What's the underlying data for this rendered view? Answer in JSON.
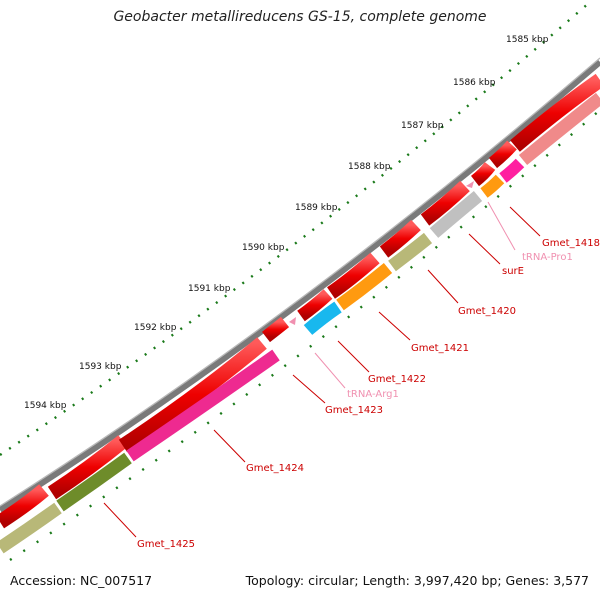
{
  "title": "Geobacter metallireducens GS-15, complete genome",
  "footer": {
    "accession": "Accession: NC_007517",
    "summary": "Topology: circular; Length: 3,997,420 bp; Genes: 3,577"
  },
  "ticks": [
    "1585 kbp",
    "1586 kbp",
    "1587 kbp",
    "1588 kbp",
    "1589 kbp",
    "1590 kbp",
    "1591 kbp",
    "1592 kbp",
    "1593 kbp",
    "1594 kbp"
  ],
  "gene_labels": [
    {
      "name": "Gmet_1418",
      "kind": "gene"
    },
    {
      "name": "tRNA-Pro1",
      "kind": "trna"
    },
    {
      "name": "surE",
      "kind": "gene"
    },
    {
      "name": "Gmet_1420",
      "kind": "gene"
    },
    {
      "name": "Gmet_1421",
      "kind": "gene"
    },
    {
      "name": "Gmet_1422",
      "kind": "gene"
    },
    {
      "name": "tRNA-Arg1",
      "kind": "trna"
    },
    {
      "name": "Gmet_1423",
      "kind": "gene"
    },
    {
      "name": "Gmet_1424",
      "kind": "gene"
    },
    {
      "name": "Gmet_1425",
      "kind": "gene"
    }
  ],
  "colors": {
    "backbone": "#7a7a7a",
    "cds": "#ee0000",
    "gene_label": "#cc0000",
    "trna_label": "#f090b0",
    "tick": "#1a7a1a",
    "cog_khaki": "#b8b878",
    "cog_olive": "#6e8c2a",
    "cog_magenta": "#ee2a90",
    "cog_orange": "#ff9a10",
    "cog_gray": "#c0c0c0",
    "cog_cyan": "#18b8ee",
    "cog_pink": "#f08a8a",
    "cog_hotpink": "#ff20a0"
  }
}
